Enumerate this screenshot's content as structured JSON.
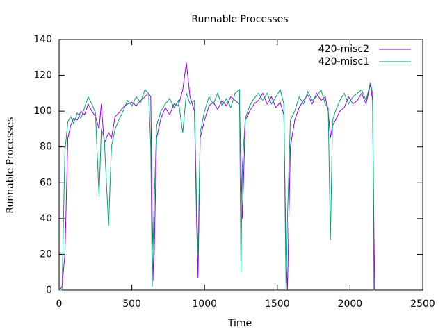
{
  "chart_data": {
    "type": "line",
    "title": "Runnable Processes",
    "x_label": "Time",
    "y_label": "Runnable Processes",
    "x": [
      0,
      20,
      40,
      60,
      80,
      100,
      125,
      150,
      175,
      200,
      225,
      250,
      275,
      290,
      310,
      340,
      360,
      385,
      410,
      440,
      470,
      500,
      530,
      560,
      590,
      615,
      630,
      640,
      650,
      670,
      700,
      730,
      760,
      790,
      820,
      850,
      875,
      900,
      930,
      945,
      955,
      970,
      1000,
      1030,
      1060,
      1090,
      1120,
      1150,
      1180,
      1210,
      1240,
      1250,
      1260,
      1280,
      1310,
      1340,
      1370,
      1400,
      1430,
      1460,
      1490,
      1520,
      1545,
      1560,
      1570,
      1590,
      1620,
      1650,
      1680,
      1710,
      1740,
      1770,
      1800,
      1830,
      1850,
      1865,
      1880,
      1900,
      1930,
      1960,
      1990,
      2020,
      2050,
      2080,
      2110,
      2140,
      2155,
      2165,
      2170
    ],
    "series": [
      {
        "name": "420-misc2",
        "color": "#9400d3",
        "values": [
          0,
          2,
          20,
          85,
          92,
          96,
          95,
          100,
          98,
          104,
          100,
          97,
          90,
          104,
          82,
          88,
          85,
          97,
          99,
          102,
          104,
          105,
          103,
          106,
          108,
          110,
          108,
          40,
          5,
          85,
          96,
          102,
          98,
          104,
          103,
          112,
          127,
          108,
          100,
          40,
          7,
          85,
          95,
          103,
          105,
          101,
          106,
          103,
          108,
          106,
          104,
          70,
          40,
          95,
          100,
          104,
          106,
          110,
          104,
          108,
          102,
          105,
          98,
          20,
          0,
          80,
          95,
          102,
          106,
          109,
          104,
          110,
          106,
          108,
          100,
          85,
          92,
          95,
          100,
          102,
          108,
          104,
          106,
          110,
          104,
          115,
          106,
          30,
          0
        ]
      },
      {
        "name": "420-misc1",
        "color": "#009e73",
        "values": [
          0,
          0,
          78,
          94,
          97,
          93,
          99,
          96,
          102,
          108,
          104,
          99,
          52,
          90,
          85,
          36,
          80,
          90,
          95,
          100,
          106,
          103,
          108,
          105,
          112,
          110,
          80,
          2,
          40,
          92,
          100,
          104,
          107,
          102,
          106,
          88,
          110,
          104,
          106,
          50,
          20,
          88,
          100,
          108,
          104,
          110,
          103,
          107,
          102,
          110,
          112,
          10,
          70,
          96,
          103,
          107,
          110,
          106,
          110,
          104,
          108,
          112,
          104,
          0,
          40,
          95,
          100,
          108,
          104,
          111,
          106,
          108,
          112,
          104,
          102,
          28,
          95,
          100,
          106,
          110,
          104,
          108,
          110,
          112,
          106,
          116,
          110,
          0,
          0
        ]
      }
    ],
    "xlim": [
      0,
      2500
    ],
    "xticks": [
      0,
      500,
      1000,
      1500,
      2000,
      2500
    ],
    "ylim": [
      0,
      140
    ],
    "yticks": [
      0,
      20,
      40,
      60,
      80,
      100,
      120,
      140
    ],
    "legend": "top-right"
  }
}
